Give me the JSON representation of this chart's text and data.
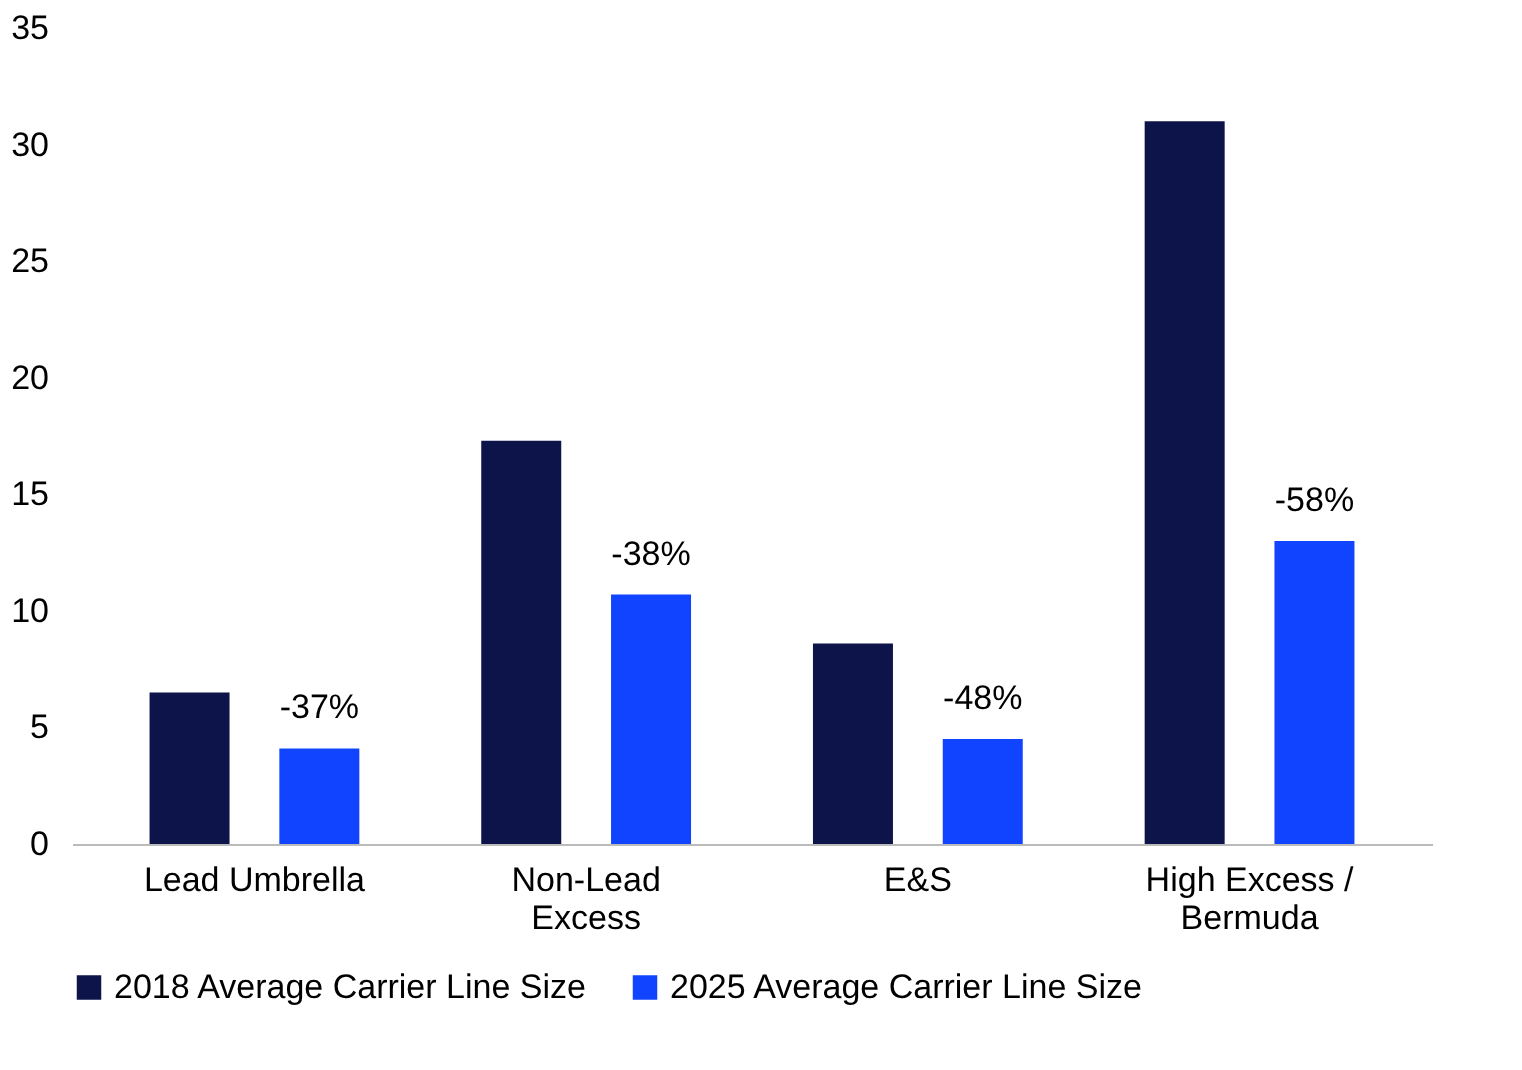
{
  "chart_data": {
    "type": "bar",
    "categories": [
      "Lead Umbrella",
      "Non-Lead Excess",
      "E&S",
      "High Excess / Bermuda"
    ],
    "series": [
      {
        "name": "2018 Average Carrier Line Size",
        "color": "#0c1449",
        "values": [
          6.5,
          17.3,
          8.6,
          31.0
        ]
      },
      {
        "name": "2025 Average Carrier Line Size",
        "color": "#1144ff",
        "values": [
          4.1,
          10.7,
          4.5,
          13.0
        ]
      }
    ],
    "annotations": [
      "-37%",
      "-38%",
      "-48%",
      "-58%"
    ],
    "ylim": [
      0,
      35
    ],
    "yticks": [
      0,
      5,
      10,
      15,
      20,
      25,
      30,
      35
    ],
    "grid": false,
    "legend": "bottom"
  }
}
